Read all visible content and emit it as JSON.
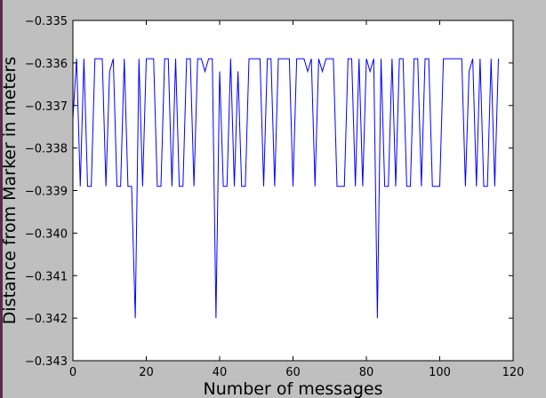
{
  "chart_data": {
    "type": "line",
    "title": "",
    "xlabel": "Number of messages",
    "ylabel": "Distance from Marker in meters",
    "xlim": [
      0,
      120
    ],
    "ylim": [
      -0.343,
      -0.335
    ],
    "x_ticks": [
      0,
      20,
      40,
      60,
      80,
      100,
      120
    ],
    "y_ticks": [
      -0.343,
      -0.342,
      -0.341,
      -0.34,
      -0.339,
      -0.338,
      -0.337,
      -0.336,
      -0.335
    ],
    "x_tick_labels": [
      "0",
      "20",
      "40",
      "60",
      "80",
      "100",
      "120"
    ],
    "y_tick_labels": [
      "−0.343",
      "−0.342",
      "−0.341",
      "−0.340",
      "−0.339",
      "−0.338",
      "−0.337",
      "−0.336",
      "−0.335"
    ],
    "grid": false,
    "legend": "none",
    "series_color": "#0000ff",
    "series": [
      {
        "x": [
          0,
          1,
          2,
          3,
          4,
          5,
          6,
          7,
          8,
          9,
          10,
          11,
          12,
          13,
          14,
          15,
          16,
          17,
          18,
          19,
          20,
          21,
          22,
          23,
          24,
          25,
          26,
          27,
          28,
          29,
          30,
          31,
          32,
          33,
          34,
          35,
          36,
          37,
          38,
          39,
          40,
          41,
          42,
          43,
          44,
          45,
          46,
          47,
          48,
          49,
          50,
          51,
          52,
          53,
          54,
          55,
          56,
          57,
          58,
          59,
          60,
          61,
          62,
          63,
          64,
          65,
          66,
          67,
          68,
          69,
          70,
          71,
          72,
          73,
          74,
          75,
          76,
          77,
          78,
          79,
          80,
          81,
          82,
          83,
          84,
          85,
          86,
          87,
          88,
          89,
          90,
          91,
          92,
          93,
          94,
          95,
          96,
          97,
          98,
          99,
          100,
          101,
          102,
          103,
          104,
          105,
          106,
          107,
          108,
          109,
          110,
          111,
          112,
          113,
          114,
          115,
          116
        ],
        "values": [
          -0.3373,
          -0.3359,
          -0.3389,
          -0.3359,
          -0.3389,
          -0.3389,
          -0.3359,
          -0.3359,
          -0.3359,
          -0.3389,
          -0.3362,
          -0.3359,
          -0.3389,
          -0.3389,
          -0.3359,
          -0.3389,
          -0.3389,
          -0.342,
          -0.3359,
          -0.3389,
          -0.3359,
          -0.3359,
          -0.3359,
          -0.3389,
          -0.3389,
          -0.3359,
          -0.3359,
          -0.3389,
          -0.3359,
          -0.3389,
          -0.3389,
          -0.3359,
          -0.3359,
          -0.3389,
          -0.3359,
          -0.3359,
          -0.3362,
          -0.3359,
          -0.3359,
          -0.342,
          -0.3362,
          -0.3389,
          -0.3389,
          -0.3359,
          -0.3389,
          -0.3362,
          -0.3389,
          -0.3389,
          -0.3359,
          -0.3359,
          -0.3359,
          -0.3359,
          -0.3389,
          -0.3359,
          -0.3359,
          -0.3389,
          -0.3359,
          -0.3359,
          -0.3359,
          -0.3359,
          -0.3389,
          -0.3359,
          -0.3359,
          -0.3359,
          -0.3362,
          -0.3359,
          -0.3389,
          -0.3359,
          -0.3362,
          -0.3359,
          -0.3359,
          -0.3359,
          -0.3389,
          -0.3389,
          -0.3389,
          -0.3359,
          -0.3359,
          -0.3389,
          -0.3359,
          -0.3389,
          -0.3359,
          -0.3362,
          -0.3359,
          -0.342,
          -0.3359,
          -0.3389,
          -0.3389,
          -0.3359,
          -0.3389,
          -0.3359,
          -0.3359,
          -0.3389,
          -0.3389,
          -0.3359,
          -0.3359,
          -0.3389,
          -0.3359,
          -0.3359,
          -0.3389,
          -0.3389,
          -0.3389,
          -0.3359,
          -0.3359,
          -0.3359,
          -0.3359,
          -0.3359,
          -0.3359,
          -0.3389,
          -0.3362,
          -0.3359,
          -0.3389,
          -0.3359,
          -0.3389,
          -0.3389,
          -0.3359,
          -0.3389,
          -0.3359
        ]
      }
    ]
  }
}
